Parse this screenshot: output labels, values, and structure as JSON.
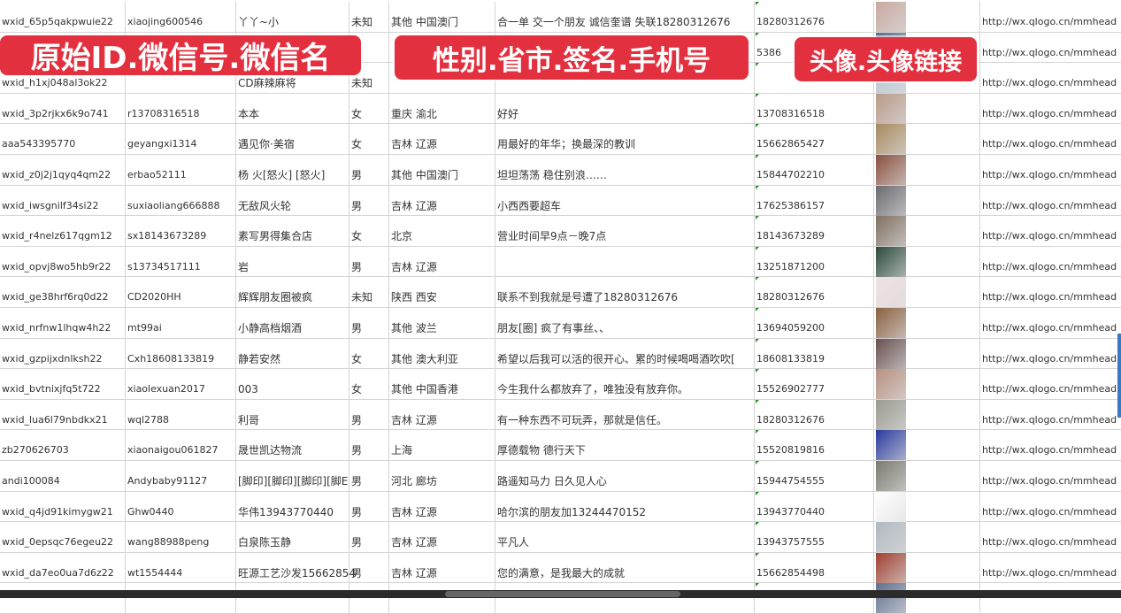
{
  "banners": {
    "left": "原始ID.微信号.微信名",
    "middle": "性别.省市.签名.手机号",
    "right": "头像.头像链接"
  },
  "avatar_colors": [
    "#c9a9a0",
    "#5a6a8a",
    "#b8c4d4",
    "#b89a88",
    "#a88a60",
    "#8a5040",
    "#6a6a70",
    "#807060",
    "#2c4a3a",
    "#f0e0e0",
    "#8a6040",
    "#6a5050",
    "#b89080",
    "#9a9a90",
    "#2a3aa0",
    "#7a7a70",
    "#ffffff",
    "#b0b8c0",
    "#a04030",
    "#607090"
  ],
  "rows": [
    {
      "id": "wxid_65p5qakpwuie22",
      "wechat": "xiaojing600546",
      "name": "丫丫~小",
      "gender": "未知",
      "region": "其他 中国澳门",
      "signature": "合一单 交一个朋友 诚信奎谱 失联18280312676",
      "phone": "18280312676",
      "link": "http://wx.qlogo.cn/mmhead"
    },
    {
      "id": "",
      "wechat": "",
      "name": "",
      "gender": "",
      "region": "",
      "signature": "",
      "phone": "5386",
      "link": "http://wx.qlogo.cn/mmhead"
    },
    {
      "id": "wxid_h1xj048al3ok22",
      "wechat": "",
      "name": "CD麻辣麻将",
      "gender": "未知",
      "region": "",
      "signature": "",
      "phone": "",
      "link": "http://wx.qlogo.cn/mmhead"
    },
    {
      "id": "wxid_3p2rjkx6k9o741",
      "wechat": "r13708316518",
      "name": "本本",
      "gender": "女",
      "region": "重庆 渝北",
      "signature": "好好",
      "phone": "13708316518",
      "link": "http://wx.qlogo.cn/mmhead"
    },
    {
      "id": "aaa543395770",
      "wechat": "geyangxi1314",
      "name": "遇见你·美宿",
      "gender": "女",
      "region": "吉林 辽源",
      "signature": "用最好的年华；换最深的教训",
      "phone": "15662865427",
      "link": "http://wx.qlogo.cn/mmhead"
    },
    {
      "id": "wxid_z0j2j1qyq4qm22",
      "wechat": "erbao52111",
      "name": "杨 火[怒火] [怒火]",
      "gender": "男",
      "region": "其他 中国澳门",
      "signature": "坦坦荡荡 稳住别浪……",
      "phone": "15844702210",
      "link": "http://wx.qlogo.cn/mmhead"
    },
    {
      "id": "wxid_iwsgnilf34si22",
      "wechat": "suxiaoliang666888",
      "name": "无敌风火轮",
      "gender": "男",
      "region": "吉林 辽源",
      "signature": "小西西要超车",
      "phone": "17625386157",
      "link": "http://wx.qlogo.cn/mmhead"
    },
    {
      "id": "wxid_r4nelz617qgm12",
      "wechat": "sx18143673289",
      "name": "素写男得集合店",
      "gender": "女",
      "region": "北京",
      "signature": "营业时间早9点－晚7点",
      "phone": "18143673289",
      "link": "http://wx.qlogo.cn/mmhead"
    },
    {
      "id": "wxid_opvj8wo5hb9r22",
      "wechat": "s13734517111",
      "name": "岩",
      "gender": "男",
      "region": "吉林 辽源",
      "signature": "",
      "phone": "13251871200",
      "link": "http://wx.qlogo.cn/mmhead"
    },
    {
      "id": "wxid_ge38hrf6rq0d22",
      "wechat": "CD2020HH",
      "name": "辉辉朋友圈被疯",
      "gender": "未知",
      "region": "陕西 西安",
      "signature": "联系不到我就是号遭了18280312676",
      "phone": "18280312676",
      "link": "http://wx.qlogo.cn/mmhead"
    },
    {
      "id": "wxid_nrfnw1lhqw4h22",
      "wechat": "mt99ai",
      "name": "小静高档烟酒",
      "gender": "男",
      "region": "其他 波兰",
      "signature": "朋友[圈] 疯了有事丝、、",
      "phone": "13694059200",
      "link": "http://wx.qlogo.cn/mmhead"
    },
    {
      "id": "wxid_gzpijxdnlksh22",
      "wechat": "Cxh18608133819",
      "name": "静若安然",
      "gender": "女",
      "region": "其他 澳大利亚",
      "signature": "希望以后我可以活的很开心、累的时候喝喝酒吹吹[",
      "phone": "18608133819",
      "link": "http://wx.qlogo.cn/mmhead"
    },
    {
      "id": "wxid_bvtnixjfq5t722",
      "wechat": "xiaolexuan2017",
      "name": "003",
      "gender": "女",
      "region": "其他 中国香港",
      "signature": "今生我什么都放弃了，唯独没有放弃你。",
      "phone": "15526902777",
      "link": "http://wx.qlogo.cn/mmhead"
    },
    {
      "id": "wxid_lua6l79nbdkx21",
      "wechat": "wql2788",
      "name": "利哥",
      "gender": "男",
      "region": "吉林 辽源",
      "signature": "有一种东西不可玩弄，那就是信任。",
      "phone": "18280312676",
      "link": "http://wx.qlogo.cn/mmhead"
    },
    {
      "id": "zb270626703",
      "wechat": "xiaonaigou061827",
      "name": "晟世凯达物流",
      "gender": "男",
      "region": "上海",
      "signature": "厚德载物 德行天下",
      "phone": "15520819816",
      "link": "http://wx.qlogo.cn/mmhead"
    },
    {
      "id": "andi100084",
      "wechat": "Andybaby91127",
      "name": "[脚印][脚印][脚印][脚E",
      "gender": "男",
      "region": "河北 廊坊",
      "signature": "路遥知马力 日久见人心",
      "phone": "15944754555",
      "link": "http://wx.qlogo.cn/mmhead"
    },
    {
      "id": "wxid_q4jd91kimygw21",
      "wechat": "Ghw0440",
      "name": "华伟13943770440",
      "gender": "男",
      "region": "吉林 辽源",
      "signature": "哈尔滨的朋友加13244470152",
      "phone": "13943770440",
      "link": "http://wx.qlogo.cn/mmhead"
    },
    {
      "id": "wxid_0epsqc76egeu22",
      "wechat": "wang88988peng",
      "name": "白泉陈玉静",
      "gender": "男",
      "region": "吉林 辽源",
      "signature": "平凡人",
      "phone": "13943757555",
      "link": "http://wx.qlogo.cn/mmhead"
    },
    {
      "id": "wxid_da7eo0ua7d6z22",
      "wechat": "wt1554444",
      "name": "旺源工艺沙发15662854",
      "gender": "男",
      "region": "吉林 辽源",
      "signature": "您的满意，是我最大的成就",
      "phone": "15662854498",
      "link": "http://wx.qlogo.cn/mmhead"
    },
    {
      "id": "",
      "wechat": "",
      "name": "",
      "gender": "",
      "region": "",
      "signature": "",
      "phone": "",
      "link": ""
    }
  ]
}
